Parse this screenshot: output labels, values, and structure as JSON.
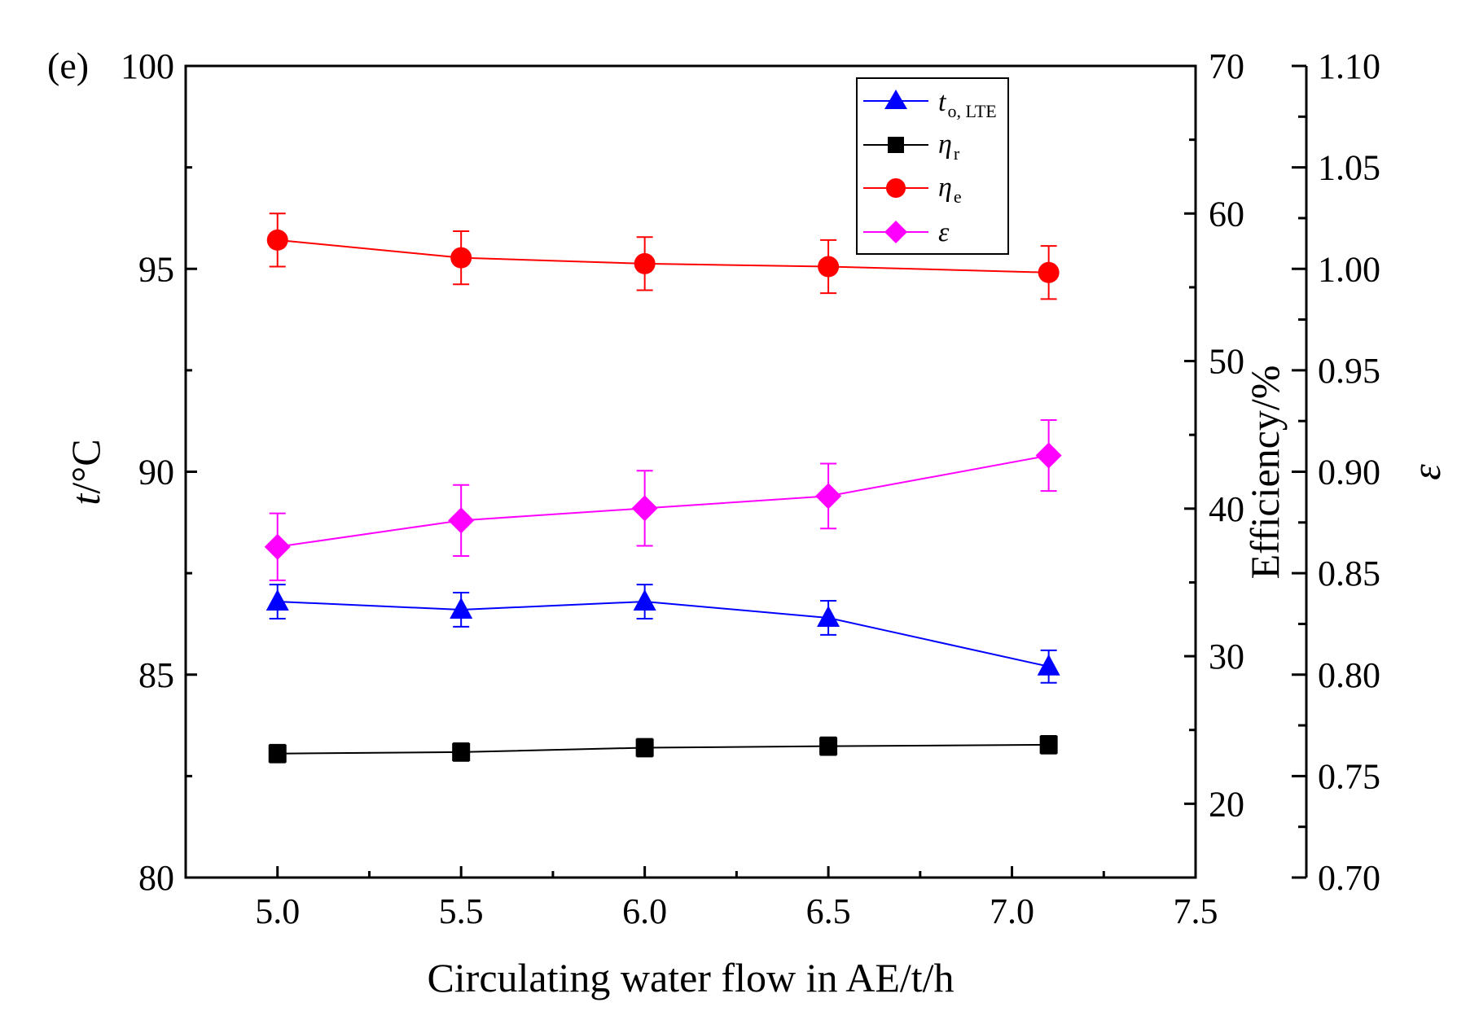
{
  "panel_label": "(e)",
  "legend": {
    "t": {
      "main": "t",
      "sub": "o, LTE",
      "color": "#0000ff",
      "marker": "triangle"
    },
    "eta_r": {
      "main": "η",
      "sub": "r",
      "color": "#000000",
      "marker": "square"
    },
    "eta_e": {
      "main": "η",
      "sub": "e",
      "color": "#ff0000",
      "marker": "circle"
    },
    "eps": {
      "main": "ε",
      "sub": "",
      "color": "#ff00ff",
      "marker": "diamond"
    }
  },
  "chart_data": {
    "type": "line",
    "xlabel": "Circulating water flow in AE/t/h",
    "xlim": [
      4.75,
      7.5
    ],
    "x_ticks": [
      "5.0",
      "5.5",
      "6.0",
      "6.5",
      "7.0",
      "7.5"
    ],
    "x": [
      5.0,
      5.5,
      6.0,
      6.5,
      7.1
    ],
    "axes": {
      "left": {
        "label_main": "t",
        "label_rest": "/°C",
        "range": [
          80,
          100
        ],
        "ticks": [
          "80",
          "85",
          "90",
          "95",
          "100"
        ]
      },
      "right1": {
        "label": "Efficiency/%",
        "range": [
          15,
          70
        ],
        "ticks": [
          "20",
          "30",
          "40",
          "50",
          "60",
          "70"
        ]
      },
      "right2": {
        "label": "ε",
        "range": [
          0.7,
          1.1
        ],
        "ticks": [
          "0.70",
          "0.75",
          "0.80",
          "0.85",
          "0.90",
          "0.95",
          "1.00",
          "1.05",
          "1.10"
        ]
      }
    },
    "series": [
      {
        "key": "t",
        "name": "t o, LTE",
        "axis": "left",
        "color": "#0000ff",
        "marker": "triangle",
        "values": [
          86.8,
          86.6,
          86.8,
          86.4,
          85.2
        ],
        "errors": [
          0.42,
          0.42,
          0.42,
          0.42,
          0.4
        ]
      },
      {
        "key": "eta_r",
        "name": "η r",
        "axis": "right1",
        "color": "#000000",
        "marker": "square",
        "values": [
          23.4,
          23.5,
          23.8,
          23.9,
          24.0
        ],
        "errors": [
          0.6,
          0.6,
          0.6,
          0.6,
          0.6
        ]
      },
      {
        "key": "eta_e",
        "name": "η e",
        "axis": "right1",
        "color": "#ff0000",
        "marker": "circle",
        "values": [
          58.2,
          57.0,
          56.6,
          56.4,
          56.0
        ],
        "errors": [
          1.8,
          1.8,
          1.8,
          1.8,
          1.8
        ]
      },
      {
        "key": "eps",
        "name": "ε",
        "axis": "right2",
        "color": "#ff00ff",
        "marker": "diamond",
        "values": [
          0.863,
          0.876,
          0.882,
          0.888,
          0.908
        ],
        "errors": [
          0.0165,
          0.0175,
          0.0185,
          0.016,
          0.0175
        ]
      }
    ]
  }
}
